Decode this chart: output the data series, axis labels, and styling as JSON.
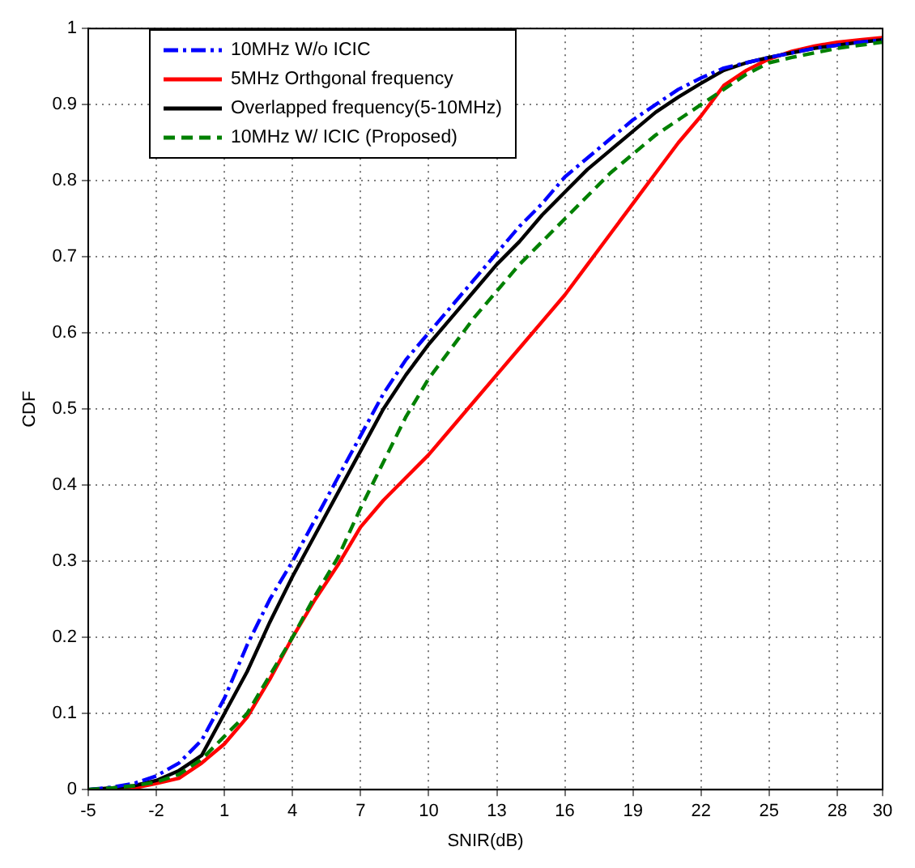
{
  "chart_data": {
    "type": "line",
    "xlabel": "SNIR(dB)",
    "ylabel": "CDF",
    "x": [
      -5,
      -4,
      -3,
      -2,
      -1,
      0,
      1,
      2,
      3,
      4,
      5,
      6,
      7,
      8,
      9,
      10,
      11,
      12,
      13,
      14,
      15,
      16,
      17,
      18,
      19,
      20,
      21,
      22,
      23,
      24,
      25,
      26,
      27,
      28,
      29,
      30
    ],
    "series": [
      {
        "name": "10MHz W/o ICIC",
        "color": "#0000ff",
        "line_style": "dashdot",
        "values": [
          0,
          0.003,
          0.008,
          0.018,
          0.035,
          0.065,
          0.12,
          0.19,
          0.25,
          0.3,
          0.355,
          0.41,
          0.465,
          0.52,
          0.565,
          0.6,
          0.635,
          0.67,
          0.705,
          0.74,
          0.77,
          0.805,
          0.83,
          0.855,
          0.88,
          0.9,
          0.92,
          0.935,
          0.948,
          0.955,
          0.962,
          0.968,
          0.974,
          0.978,
          0.982,
          0.985
        ]
      },
      {
        "name": "5MHz Orthgonal frequency",
        "color": "#ff0000",
        "line_style": "solid",
        "values": [
          0,
          0,
          0.002,
          0.008,
          0.015,
          0.035,
          0.06,
          0.095,
          0.145,
          0.2,
          0.25,
          0.295,
          0.345,
          0.38,
          0.41,
          0.44,
          0.475,
          0.51,
          0.545,
          0.58,
          0.615,
          0.65,
          0.69,
          0.73,
          0.77,
          0.81,
          0.85,
          0.885,
          0.925,
          0.945,
          0.96,
          0.97,
          0.977,
          0.982,
          0.985,
          0.988
        ]
      },
      {
        "name": "Overlapped frequency(5-10MHz)",
        "color": "#000000",
        "line_style": "solid",
        "values": [
          0,
          0.002,
          0.005,
          0.012,
          0.025,
          0.045,
          0.1,
          0.155,
          0.22,
          0.28,
          0.335,
          0.39,
          0.445,
          0.5,
          0.545,
          0.585,
          0.62,
          0.655,
          0.69,
          0.72,
          0.755,
          0.785,
          0.815,
          0.84,
          0.865,
          0.89,
          0.91,
          0.928,
          0.945,
          0.955,
          0.962,
          0.968,
          0.974,
          0.978,
          0.982,
          0.985
        ]
      },
      {
        "name": "10MHz W/ ICIC (Proposed)",
        "color": "#008000",
        "line_style": "dashed",
        "values": [
          0,
          0.002,
          0.005,
          0.01,
          0.02,
          0.04,
          0.07,
          0.1,
          0.15,
          0.2,
          0.255,
          0.305,
          0.37,
          0.43,
          0.49,
          0.54,
          0.58,
          0.62,
          0.655,
          0.69,
          0.72,
          0.75,
          0.78,
          0.81,
          0.835,
          0.86,
          0.88,
          0.9,
          0.92,
          0.94,
          0.955,
          0.962,
          0.968,
          0.974,
          0.978,
          0.982
        ]
      }
    ],
    "xlim": [
      -5,
      30
    ],
    "xticks": [
      -5,
      -2,
      1,
      4,
      7,
      10,
      13,
      16,
      19,
      22,
      25,
      28,
      30
    ],
    "ylim": [
      0,
      1
    ],
    "yticks": [
      0,
      0.1,
      0.2,
      0.3,
      0.4,
      0.5,
      0.6,
      0.7,
      0.8,
      0.9,
      1
    ],
    "grid": true,
    "legend": "top left",
    "marker": "none"
  }
}
